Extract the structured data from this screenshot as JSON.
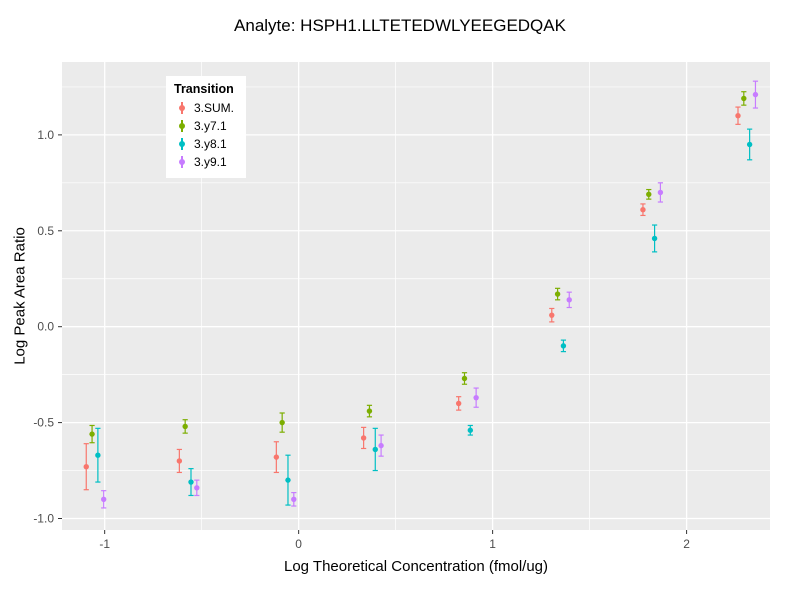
{
  "title": "Analyte: HSPH1.LLTETEDWLYEEGEDQAK",
  "axes": {
    "x_label": "Log Theoretical Concentration (fmol/ug)",
    "y_label": "Log Peak Area Ratio"
  },
  "legend": {
    "title": "Transition",
    "items": [
      "3.SUM.",
      "3.y7.1",
      "3.y8.1",
      "3.y9.1"
    ]
  },
  "style": {
    "panel_bg": "#EBEBEB",
    "grid_color": "#FFFFFF",
    "tick_label_color": "#4D4D4D",
    "tick_mark_color": "#333333"
  },
  "chart_data": {
    "type": "scatter",
    "title": "Analyte: HSPH1.LLTETEDWLYEEGEDQAK",
    "xlabel": "Log Theoretical Concentration (fmol/ug)",
    "ylabel": "Log Peak Area Ratio",
    "xlim": [
      -1.22,
      2.43
    ],
    "ylim": [
      -1.06,
      1.38
    ],
    "x_ticks": [
      -1,
      0,
      1,
      2
    ],
    "x_tick_labels": [
      "-1",
      "0",
      "1",
      "2"
    ],
    "y_ticks": [
      -1.0,
      -0.5,
      0.0,
      0.5,
      1.0
    ],
    "y_tick_labels": [
      "-1.0",
      "-0.5",
      "0.0",
      "0.5",
      "1.0"
    ],
    "x_minor": [
      -0.5,
      0.5,
      1.5
    ],
    "y_minor": [
      -0.75,
      -0.25,
      0.25,
      0.75,
      1.25
    ],
    "grid": true,
    "legend_position": "top-left-inside",
    "x": [
      -1.05,
      -0.57,
      -0.07,
      0.38,
      0.87,
      1.35,
      1.82,
      2.31
    ],
    "dodge": [
      -0.045,
      -0.015,
      0.015,
      0.045
    ],
    "series": [
      {
        "name": "3.SUM.",
        "color": "#F8766D",
        "y": [
          -0.73,
          -0.7,
          -0.68,
          -0.58,
          -0.4,
          0.06,
          0.61,
          1.1
        ],
        "err": [
          0.12,
          0.06,
          0.08,
          0.055,
          0.035,
          0.035,
          0.03,
          0.045
        ]
      },
      {
        "name": "3.y7.1",
        "color": "#7CAE00",
        "y": [
          -0.56,
          -0.52,
          -0.5,
          -0.44,
          -0.27,
          0.17,
          0.69,
          1.19
        ],
        "err": [
          0.045,
          0.035,
          0.05,
          0.03,
          0.03,
          0.03,
          0.025,
          0.035
        ]
      },
      {
        "name": "3.y8.1",
        "color": "#00BFC4",
        "y": [
          -0.67,
          -0.81,
          -0.8,
          -0.64,
          -0.54,
          -0.1,
          0.46,
          0.95
        ],
        "err": [
          0.14,
          0.07,
          0.13,
          0.11,
          0.025,
          0.03,
          0.07,
          0.08
        ]
      },
      {
        "name": "3.y9.1",
        "color": "#C77CFF",
        "y": [
          -0.9,
          -0.84,
          -0.9,
          -0.62,
          -0.37,
          0.14,
          0.7,
          1.21
        ],
        "err": [
          0.045,
          0.04,
          0.035,
          0.055,
          0.05,
          0.04,
          0.05,
          0.07
        ]
      }
    ]
  }
}
